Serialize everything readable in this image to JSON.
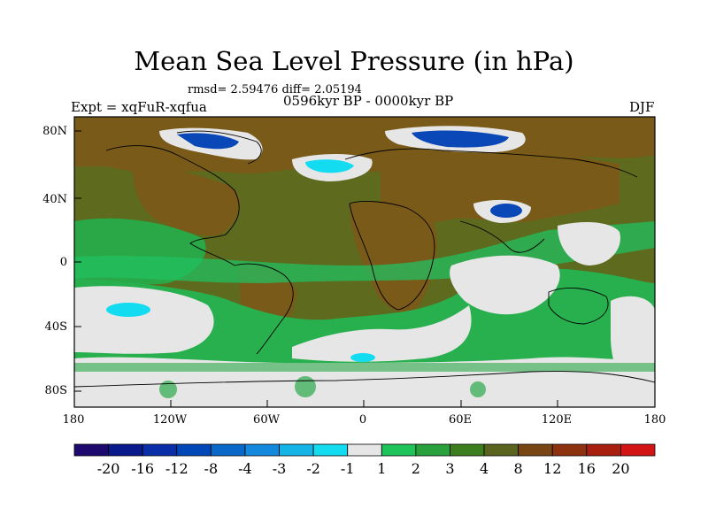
{
  "title": "Mean Sea Level Pressure (in hPa)",
  "stats": "rmsd= 2.59476 diff= 2.05194",
  "period": "0596kyr BP - 0000kyr BP",
  "experiment": "Expt = xqFuR-xqfua",
  "season": "DJF",
  "lat_labels": [
    "80N",
    "40N",
    "0",
    "40S",
    "80S"
  ],
  "lon_labels": [
    "180",
    "120W",
    "60W",
    "0",
    "60E",
    "120E",
    "180"
  ],
  "colorbar": {
    "labels": [
      "-20",
      "-16",
      "-12",
      "-8",
      "-4",
      "-3",
      "-2",
      "-1",
      "1",
      "2",
      "3",
      "4",
      "8",
      "12",
      "16",
      "20"
    ],
    "colors": [
      "#1e0a6e",
      "#0a1a8c",
      "#0a2ea8",
      "#0048b8",
      "#0a68c8",
      "#1488dc",
      "#14b4e6",
      "#14dcf0",
      "#e6e6e6",
      "#1ec35a",
      "#28a03c",
      "#3c7d1e",
      "#5a641e",
      "#784614",
      "#8c320f",
      "#a81e0f",
      "#d21414"
    ]
  },
  "colors": {
    "land_brown": "#7a5a18",
    "olive": "#5a6a1a",
    "green": "#2aa848",
    "light_green": "#22c060",
    "white_grey": "#e6e6e6",
    "blue": "#0a68c8",
    "cyan": "#14dcf0"
  }
}
